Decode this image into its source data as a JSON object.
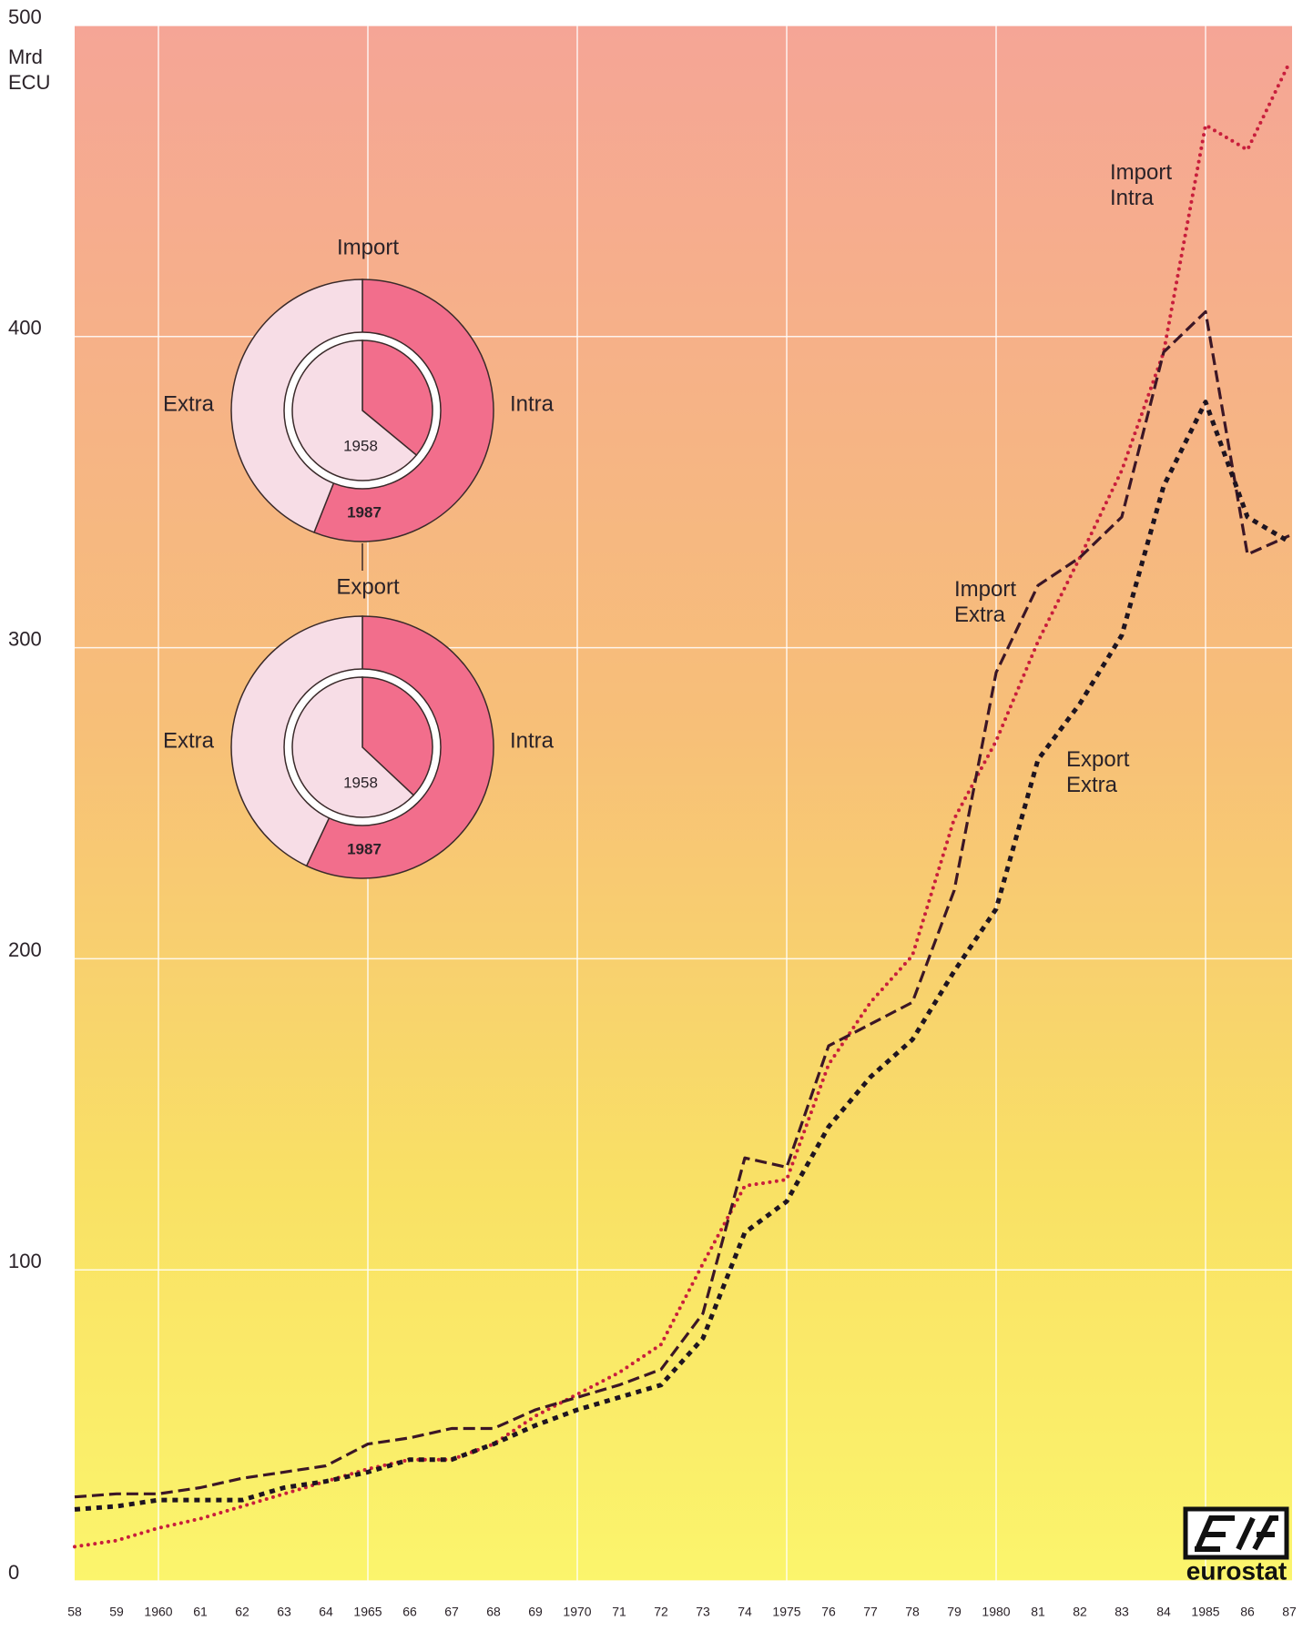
{
  "chart_data": [
    {
      "type": "line",
      "y_label": [
        "Mrd",
        "ECU"
      ],
      "categories": [
        "58",
        "59",
        "1960",
        "61",
        "62",
        "63",
        "64",
        "1965",
        "66",
        "67",
        "68",
        "69",
        "1970",
        "71",
        "72",
        "73",
        "74",
        "1975",
        "76",
        "77",
        "78",
        "79",
        "1980",
        "81",
        "82",
        "83",
        "84",
        "1985",
        "86",
        "87"
      ],
      "ylim": [
        0,
        500
      ],
      "yticks": [
        0,
        100,
        200,
        300,
        400,
        500
      ],
      "grid": true,
      "series": [
        {
          "name": "Import Intra",
          "color": "#c81e3c",
          "style": "dotted",
          "values": [
            11,
            13,
            17,
            20,
            24,
            28,
            32,
            36,
            39,
            39,
            44,
            53,
            60,
            67,
            76,
            102,
            127,
            129,
            166,
            186,
            201,
            245,
            270,
            302,
            329,
            357,
            395,
            468,
            460,
            488
          ]
        },
        {
          "name": "Import Extra",
          "color": "#3b1626",
          "style": "dashed",
          "values": [
            27,
            28,
            28,
            30,
            33,
            35,
            37,
            44,
            46,
            49,
            49,
            55,
            59,
            63,
            68,
            86,
            136,
            133,
            172,
            179,
            186,
            222,
            292,
            320,
            329,
            342,
            395,
            408,
            330,
            336
          ]
        },
        {
          "name": "Export Extra",
          "color": "#1e1420",
          "style": "dotted-bold",
          "values": [
            23,
            24,
            26,
            26,
            26,
            30,
            32,
            35,
            39,
            39,
            44,
            50,
            55,
            59,
            63,
            78,
            112,
            122,
            146,
            162,
            174,
            196,
            216,
            264,
            282,
            304,
            352,
            379,
            342,
            334
          ]
        }
      ],
      "source": "eurostat"
    },
    {
      "type": "pie",
      "title": "Import",
      "categories": [
        "Intra",
        "Extra"
      ],
      "colors": [
        "#f26e8c",
        "#f7dde6"
      ],
      "series": [
        {
          "name": "1958",
          "values": [
            36,
            64
          ]
        },
        {
          "name": "1987",
          "values": [
            56,
            44
          ]
        }
      ]
    },
    {
      "type": "pie",
      "title": "Export",
      "categories": [
        "Intra",
        "Extra"
      ],
      "colors": [
        "#f26e8c",
        "#f7dde6"
      ],
      "series": [
        {
          "name": "1958",
          "values": [
            37,
            63
          ]
        },
        {
          "name": "1987",
          "values": [
            57,
            43
          ]
        }
      ]
    }
  ]
}
